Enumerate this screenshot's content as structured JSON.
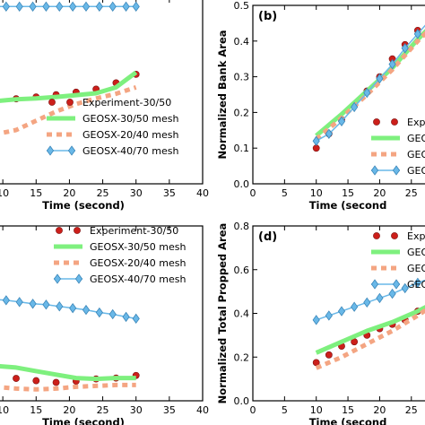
{
  "chart_data": [
    {
      "type": "line",
      "panel_label": "",
      "xlabel": "Time (second)",
      "ylabel": "",
      "xlim": [
        8.5,
        40
      ],
      "ylim": [
        0,
        1
      ],
      "xticks": [
        10,
        15,
        20,
        25,
        30,
        35,
        40
      ],
      "yticks": [],
      "legend_position": "lower-right",
      "series": [
        {
          "name": "Experiment-30/50",
          "style": "scatter",
          "color": "#cc1f1a",
          "x": [
            8.7,
            12,
            15,
            18,
            21,
            24,
            27,
            30
          ],
          "y": [
            0.44,
            0.458,
            0.468,
            0.48,
            0.494,
            0.51,
            0.544,
            0.59
          ]
        },
        {
          "name": "GEOSX-30/50 mesh",
          "style": "line",
          "color": "#7ef07e",
          "x": [
            8.7,
            12,
            15,
            18,
            21,
            24,
            27,
            30
          ],
          "y": [
            0.445,
            0.455,
            0.46,
            0.468,
            0.478,
            0.488,
            0.52,
            0.6
          ]
        },
        {
          "name": "GEOSX-20/40 mesh",
          "style": "dashed",
          "color": "#f4a582",
          "x": [
            8.7,
            12,
            15,
            18,
            21,
            24,
            27,
            30
          ],
          "y": [
            0.265,
            0.29,
            0.34,
            0.39,
            0.43,
            0.46,
            0.485,
            0.52
          ]
        },
        {
          "name": "GEOSX-40/70 mesh",
          "style": "diamond-line",
          "color": "#69b8e8",
          "x": [
            8.7,
            10.5,
            12.5,
            14.5,
            16.5,
            18.5,
            20.5,
            22.5,
            24.5,
            26.5,
            28.5,
            30
          ],
          "y": [
            0.955,
            0.955,
            0.955,
            0.955,
            0.955,
            0.955,
            0.955,
            0.955,
            0.955,
            0.955,
            0.955,
            0.955
          ]
        }
      ]
    },
    {
      "type": "line",
      "panel_label": "(b)",
      "xlabel": "Time (second",
      "ylabel": "Normalized Bank Area",
      "xlim": [
        0,
        28
      ],
      "ylim": [
        0,
        0.5
      ],
      "xticks": [
        0,
        5,
        10,
        15,
        20,
        25
      ],
      "yticks": [
        0.0,
        0.1,
        0.2,
        0.3,
        0.4,
        0.5
      ],
      "legend_position": "lower-right",
      "series": [
        {
          "name": "Experiment-30/50",
          "style": "scatter",
          "color": "#cc1f1a",
          "x": [
            10,
            12,
            14,
            16,
            18,
            20,
            22,
            24,
            26,
            28
          ],
          "y": [
            0.1,
            0.14,
            0.18,
            0.22,
            0.26,
            0.3,
            0.35,
            0.39,
            0.43,
            0.47
          ]
        },
        {
          "name": "GEOS",
          "style": "line",
          "color": "#7ef07e",
          "x": [
            10,
            14,
            18,
            22,
            26,
            28
          ],
          "y": [
            0.135,
            0.195,
            0.26,
            0.325,
            0.405,
            0.44
          ]
        },
        {
          "name": "GEOS",
          "style": "dashed",
          "color": "#f4a582",
          "x": [
            10,
            14,
            18,
            22,
            26,
            28
          ],
          "y": [
            0.125,
            0.185,
            0.25,
            0.32,
            0.4,
            0.435
          ]
        },
        {
          "name": "GEOS",
          "style": "diamond-line",
          "color": "#69b8e8",
          "x": [
            10,
            12,
            14,
            16,
            18,
            20,
            22,
            24,
            26,
            28
          ],
          "y": [
            0.12,
            0.14,
            0.175,
            0.215,
            0.255,
            0.295,
            0.335,
            0.38,
            0.42,
            0.46
          ]
        }
      ]
    },
    {
      "type": "line",
      "panel_label": "",
      "xlabel": "Time (second)",
      "ylabel": "",
      "xlim": [
        8.5,
        40
      ],
      "ylim": [
        0,
        1
      ],
      "xticks": [
        10,
        15,
        20,
        25,
        30,
        35,
        40
      ],
      "yticks": [],
      "legend_position": "upper-right",
      "series": [
        {
          "name": "Experiment-30/50",
          "style": "scatter",
          "color": "#cc1f1a",
          "x": [
            8.7,
            12,
            15,
            18,
            21,
            24,
            27,
            30
          ],
          "y": [
            0.145,
            0.128,
            0.115,
            0.105,
            0.112,
            0.125,
            0.13,
            0.145
          ]
        },
        {
          "name": "GEOSX-30/50 mesh",
          "style": "line",
          "color": "#7ef07e",
          "x": [
            8.7,
            12,
            15,
            18,
            21,
            24,
            27,
            30
          ],
          "y": [
            0.2,
            0.19,
            0.17,
            0.15,
            0.13,
            0.125,
            0.13,
            0.13
          ]
        },
        {
          "name": "GEOSX-20/40 mesh",
          "style": "dashed",
          "color": "#f4a582",
          "x": [
            8.7,
            12,
            15,
            18,
            21,
            24,
            27,
            30
          ],
          "y": [
            0.08,
            0.07,
            0.065,
            0.07,
            0.08,
            0.085,
            0.09,
            0.09
          ]
        },
        {
          "name": "GEOSX-40/70 mesh",
          "style": "diamond-line",
          "color": "#69b8e8",
          "x": [
            8.7,
            10.5,
            12.5,
            14.5,
            16.5,
            18.5,
            20.5,
            22.5,
            24.5,
            26.5,
            28.5,
            30
          ],
          "y": [
            0.58,
            0.575,
            0.565,
            0.555,
            0.55,
            0.54,
            0.53,
            0.52,
            0.505,
            0.495,
            0.48,
            0.47
          ]
        }
      ]
    },
    {
      "type": "line",
      "panel_label": "(d)",
      "xlabel": "Time (second",
      "ylabel": "Normalized Total Propped Area",
      "xlim": [
        0,
        28
      ],
      "ylim": [
        0,
        0.8
      ],
      "xticks": [
        0,
        5,
        10,
        15,
        20,
        25
      ],
      "yticks": [
        0.0,
        0.2,
        0.4,
        0.6,
        0.8
      ],
      "legend_position": "upper-right",
      "series": [
        {
          "name": "Expe",
          "style": "scatter",
          "color": "#cc1f1a",
          "x": [
            10,
            12,
            14,
            16,
            18,
            20,
            22,
            24,
            26,
            28
          ],
          "y": [
            0.175,
            0.21,
            0.25,
            0.27,
            0.3,
            0.33,
            0.35,
            0.37,
            0.41,
            0.44
          ]
        },
        {
          "name": "GEOS",
          "style": "line",
          "color": "#7ef07e",
          "x": [
            10,
            14,
            18,
            22,
            26,
            28
          ],
          "y": [
            0.22,
            0.27,
            0.32,
            0.36,
            0.41,
            0.44
          ]
        },
        {
          "name": "GEOS",
          "style": "dashed",
          "color": "#f4a582",
          "x": [
            10,
            14,
            18,
            22,
            26,
            28
          ],
          "y": [
            0.15,
            0.2,
            0.26,
            0.32,
            0.39,
            0.43
          ]
        },
        {
          "name": "GEOS",
          "style": "diamond-line",
          "color": "#69b8e8",
          "x": [
            10,
            12,
            14,
            16,
            18,
            20,
            22,
            24,
            26,
            28
          ],
          "y": [
            0.37,
            0.39,
            0.41,
            0.43,
            0.45,
            0.47,
            0.49,
            0.515,
            0.54,
            0.56
          ]
        }
      ]
    }
  ]
}
